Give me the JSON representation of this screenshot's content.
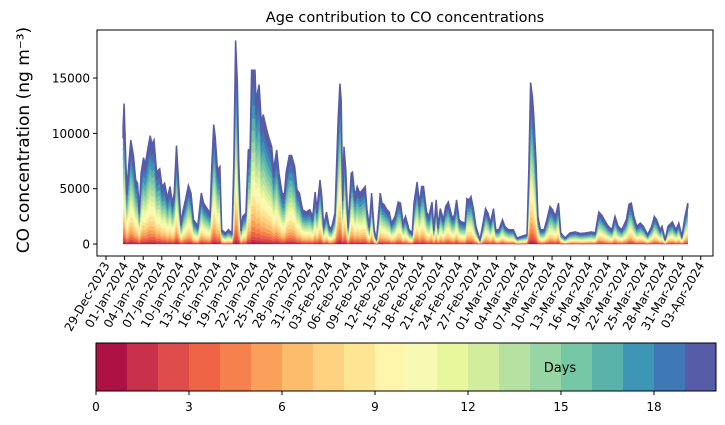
{
  "chart_data": {
    "type": "area",
    "stacked": true,
    "title": "Age contribution to CO concentrations",
    "xlabel": "",
    "ylabel": "CO concentration (ng m⁻³)",
    "xlim": [
      "2023-12-27 13:00",
      "2024-04-04 23:30"
    ],
    "ylim": [
      -1080,
      19340
    ],
    "yticks": [
      0,
      5000,
      10000,
      15000
    ],
    "xtick_labels": [
      "29-Dec-2023",
      "01-Jan-2024",
      "04-Jan-2024",
      "07-Jan-2024",
      "10-Jan-2024",
      "13-Jan-2024",
      "16-Jan-2024",
      "19-Jan-2024",
      "22-Jan-2024",
      "25-Jan-2024",
      "28-Jan-2024",
      "31-Jan-2024",
      "03-Feb-2024",
      "06-Feb-2024",
      "09-Feb-2024",
      "12-Feb-2024",
      "15-Feb-2024",
      "18-Feb-2024",
      "21-Feb-2024",
      "24-Feb-2024",
      "27-Feb-2024",
      "01-Mar-2024",
      "04-Mar-2024",
      "07-Mar-2024",
      "10-Mar-2024",
      "13-Mar-2024",
      "16-Mar-2024",
      "19-Mar-2024",
      "22-Mar-2024",
      "25-Mar-2024",
      "28-Mar-2024",
      "31-Mar-2024",
      "03-Apr-2024"
    ],
    "xtick_dates": [
      "2023-12-29",
      "2024-01-01",
      "2024-01-04",
      "2024-01-07",
      "2024-01-10",
      "2024-01-13",
      "2024-01-16",
      "2024-01-19",
      "2024-01-22",
      "2024-01-25",
      "2024-01-28",
      "2024-01-31",
      "2024-02-03",
      "2024-02-06",
      "2024-02-09",
      "2024-02-12",
      "2024-02-15",
      "2024-02-18",
      "2024-02-21",
      "2024-02-24",
      "2024-02-27",
      "2024-03-01",
      "2024-03-04",
      "2024-03-07",
      "2024-03-10",
      "2024-03-13",
      "2024-03-16",
      "2024-03-19",
      "2024-03-22",
      "2024-03-25",
      "2024-03-28",
      "2024-03-31",
      "2024-04-03"
    ],
    "total": [
      [
        "2023-12-31 18:00",
        10600
      ],
      [
        "2023-12-31 22:00",
        12700
      ],
      [
        "2024-01-01 08:00",
        4900
      ],
      [
        "2024-01-02 00:00",
        9400
      ],
      [
        "2024-01-02 10:00",
        8000
      ],
      [
        "2024-01-02 19:00",
        5800
      ],
      [
        "2024-01-03 02:00",
        5500
      ],
      [
        "2024-01-03 09:00",
        3100
      ],
      [
        "2024-01-03 16:00",
        6400
      ],
      [
        "2024-01-04 01:00",
        7800
      ],
      [
        "2024-01-04 08:00",
        7200
      ],
      [
        "2024-01-04 20:00",
        8900
      ],
      [
        "2024-01-05 03:00",
        9800
      ],
      [
        "2024-01-05 10:00",
        9000
      ],
      [
        "2024-01-05 18:00",
        9400
      ],
      [
        "2024-01-06 04:00",
        6500
      ],
      [
        "2024-01-06 16:00",
        6800
      ],
      [
        "2024-01-07 01:00",
        5200
      ],
      [
        "2024-01-07 11:00",
        5500
      ],
      [
        "2024-01-07 22:00",
        4150
      ],
      [
        "2024-01-08 08:00",
        5200
      ],
      [
        "2024-01-08 17:00",
        3700
      ],
      [
        "2024-01-09 00:00",
        4600
      ],
      [
        "2024-01-09 09:00",
        8900
      ],
      [
        "2024-01-09 16:00",
        6100
      ],
      [
        "2024-01-10 02:00",
        1900
      ],
      [
        "2024-01-10 11:00",
        3100
      ],
      [
        "2024-01-10 20:00",
        4000
      ],
      [
        "2024-01-11 07:00",
        5300
      ],
      [
        "2024-01-11 17:00",
        4600
      ],
      [
        "2024-01-12 03:00",
        2200
      ],
      [
        "2024-01-12 12:00",
        1900
      ],
      [
        "2024-01-12 19:00",
        1600
      ],
      [
        "2024-01-13 09:00",
        4600
      ],
      [
        "2024-01-13 18:00",
        3700
      ],
      [
        "2024-01-14 19:00",
        2800
      ],
      [
        "2024-01-15 01:00",
        6700
      ],
      [
        "2024-01-15 09:00",
        10800
      ],
      [
        "2024-01-15 15:00",
        9700
      ],
      [
        "2024-01-16 00:00",
        6700
      ],
      [
        "2024-01-16 09:00",
        7000
      ],
      [
        "2024-01-16 16:00",
        1300
      ],
      [
        "2024-01-17 06:00",
        1000
      ],
      [
        "2024-01-17 18:00",
        1300
      ],
      [
        "2024-01-18 08:00",
        1000
      ],
      [
        "2024-01-18 15:00",
        7300
      ],
      [
        "2024-01-18 22:00",
        18400
      ],
      [
        "2024-01-19 05:00",
        14500
      ],
      [
        "2024-01-19 10:00",
        7600
      ],
      [
        "2024-01-19 19:00",
        1300
      ],
      [
        "2024-01-20 02:00",
        2500
      ],
      [
        "2024-01-20 14:00",
        2800
      ],
      [
        "2024-01-20 23:00",
        8500
      ],
      [
        "2024-01-21 06:00",
        8600
      ],
      [
        "2024-01-21 12:00",
        15700
      ],
      [
        "2024-01-22 01:00",
        15700
      ],
      [
        "2024-01-22 05:00",
        13000
      ],
      [
        "2024-01-22 17:00",
        14400
      ],
      [
        "2024-01-23 02:00",
        10900
      ],
      [
        "2024-01-23 09:00",
        11700
      ],
      [
        "2024-01-23 23:00",
        10300
      ],
      [
        "2024-01-24 06:00",
        9700
      ],
      [
        "2024-01-24 18:00",
        8800
      ],
      [
        "2024-01-25 01:00",
        6700
      ],
      [
        "2024-01-25 13:00",
        8500
      ],
      [
        "2024-01-25 22:00",
        6400
      ],
      [
        "2024-01-26 10:00",
        4600
      ],
      [
        "2024-01-26 19:00",
        4500
      ],
      [
        "2024-01-27 02:00",
        6500
      ],
      [
        "2024-01-27 14:00",
        8000
      ],
      [
        "2024-01-27 23:00",
        8000
      ],
      [
        "2024-01-28 11:00",
        7000
      ],
      [
        "2024-01-28 20:00",
        4900
      ],
      [
        "2024-01-29 05:00",
        4600
      ],
      [
        "2024-01-29 17:00",
        3100
      ],
      [
        "2024-01-30 07:00",
        2900
      ],
      [
        "2024-01-30 21:00",
        3100
      ],
      [
        "2024-01-31 09:00",
        2500
      ],
      [
        "2024-01-31 18:00",
        4700
      ],
      [
        "2024-02-01 01:00",
        3100
      ],
      [
        "2024-02-01 13:00",
        5800
      ],
      [
        "2024-02-01 20:00",
        4300
      ],
      [
        "2024-02-02 03:00",
        1600
      ],
      [
        "2024-02-02 14:00",
        2900
      ],
      [
        "2024-02-03 00:00",
        1600
      ],
      [
        "2024-02-03 09:00",
        1400
      ],
      [
        "2024-02-03 23:00",
        2800
      ],
      [
        "2024-02-04 11:00",
        11200
      ],
      [
        "2024-02-04 18:00",
        14500
      ],
      [
        "2024-02-04 23:00",
        13000
      ],
      [
        "2024-02-05 05:00",
        4300
      ],
      [
        "2024-02-05 10:00",
        8800
      ],
      [
        "2024-02-05 17:00",
        6700
      ],
      [
        "2024-02-06 02:00",
        1600
      ],
      [
        "2024-02-06 14:00",
        6400
      ],
      [
        "2024-02-06 19:00",
        6500
      ],
      [
        "2024-02-07 04:00",
        4300
      ],
      [
        "2024-02-07 13:00",
        5200
      ],
      [
        "2024-02-07 23:00",
        4600
      ],
      [
        "2024-02-08 20:00",
        5200
      ],
      [
        "2024-02-09 03:00",
        3100
      ],
      [
        "2024-02-09 12:00",
        1600
      ],
      [
        "2024-02-09 21:00",
        4600
      ],
      [
        "2024-02-10 07:00",
        1300
      ],
      [
        "2024-02-10 16:00",
        400
      ],
      [
        "2024-02-11 06:00",
        4600
      ],
      [
        "2024-02-11 13:00",
        3700
      ],
      [
        "2024-02-11 20:00",
        3600
      ],
      [
        "2024-02-12 08:00",
        3100
      ],
      [
        "2024-02-12 17:00",
        2900
      ],
      [
        "2024-02-13 02:00",
        1900
      ],
      [
        "2024-02-13 16:00",
        2500
      ],
      [
        "2024-02-14 04:00",
        3800
      ],
      [
        "2024-02-14 13:00",
        3700
      ],
      [
        "2024-02-14 23:00",
        1900
      ],
      [
        "2024-02-15 08:00",
        2500
      ],
      [
        "2024-02-15 22:00",
        1300
      ],
      [
        "2024-02-16 10:00",
        1000
      ],
      [
        "2024-02-16 17:00",
        3700
      ],
      [
        "2024-02-17 05:00",
        5600
      ],
      [
        "2024-02-17 14:00",
        3700
      ],
      [
        "2024-02-17 23:00",
        5200
      ],
      [
        "2024-02-18 06:00",
        5200
      ],
      [
        "2024-02-18 18:00",
        2900
      ],
      [
        "2024-02-19 03:00",
        2500
      ],
      [
        "2024-02-19 15:00",
        3800
      ],
      [
        "2024-02-19 22:00",
        1300
      ],
      [
        "2024-02-20 07:00",
        4000
      ],
      [
        "2024-02-20 14:00",
        1600
      ],
      [
        "2024-02-20 23:00",
        3200
      ],
      [
        "2024-02-21 11:00",
        2200
      ],
      [
        "2024-02-21 20:00",
        3400
      ],
      [
        "2024-02-22 06:00",
        3800
      ],
      [
        "2024-02-22 20:00",
        2500
      ],
      [
        "2024-02-23 05:00",
        2500
      ],
      [
        "2024-02-23 14:00",
        4000
      ],
      [
        "2024-02-24 00:00",
        2200
      ],
      [
        "2024-02-24 09:00",
        2000
      ],
      [
        "2024-02-24 23:00",
        1900
      ],
      [
        "2024-02-25 06:00",
        4100
      ],
      [
        "2024-02-25 15:00",
        4000
      ],
      [
        "2024-02-25 22:00",
        4300
      ],
      [
        "2024-02-26 08:00",
        3100
      ],
      [
        "2024-02-26 17:00",
        1600
      ],
      [
        "2024-02-27 09:00",
        400
      ],
      [
        "2024-02-27 21:00",
        1900
      ],
      [
        "2024-02-28 06:00",
        3200
      ],
      [
        "2024-02-28 16:00",
        2800
      ],
      [
        "2024-02-29 01:00",
        1900
      ],
      [
        "2024-02-29 13:00",
        3200
      ],
      [
        "2024-02-29 22:00",
        1300
      ],
      [
        "2024-03-01 10:00",
        1300
      ],
      [
        "2024-03-02 00:00",
        2200
      ],
      [
        "2024-03-02 09:00",
        1600
      ],
      [
        "2024-03-02 23:00",
        1300
      ],
      [
        "2024-03-03 18:00",
        1300
      ],
      [
        "2024-03-04 08:00",
        550
      ],
      [
        "2024-03-05 02:00",
        700
      ],
      [
        "2024-03-05 23:00",
        850
      ],
      [
        "2024-03-06 06:00",
        6700
      ],
      [
        "2024-03-06 13:00",
        14600
      ],
      [
        "2024-03-06 20:00",
        13300
      ],
      [
        "2024-03-07 01:00",
        11700
      ],
      [
        "2024-03-07 10:00",
        7300
      ],
      [
        "2024-03-07 17:00",
        2500
      ],
      [
        "2024-03-08 03:00",
        1300
      ],
      [
        "2024-03-08 17:00",
        1300
      ],
      [
        "2024-03-09 04:00",
        2200
      ],
      [
        "2024-03-09 16:00",
        3400
      ],
      [
        "2024-03-10 02:00",
        3100
      ],
      [
        "2024-03-10 13:00",
        2500
      ],
      [
        "2024-03-11 01:00",
        3700
      ],
      [
        "2024-03-11 10:00",
        1000
      ],
      [
        "2024-03-12 02:00",
        550
      ],
      [
        "2024-03-12 21:00",
        1000
      ],
      [
        "2024-03-13 18:00",
        1100
      ],
      [
        "2024-03-14 13:00",
        950
      ],
      [
        "2024-03-15 07:00",
        1000
      ],
      [
        "2024-03-16 09:00",
        1100
      ],
      [
        "2024-03-16 23:00",
        1000
      ],
      [
        "2024-03-17 13:00",
        2900
      ],
      [
        "2024-03-18 01:00",
        2600
      ],
      [
        "2024-03-18 15:00",
        2000
      ],
      [
        "2024-03-19 02:00",
        1600
      ],
      [
        "2024-03-19 16:00",
        1300
      ],
      [
        "2024-03-20 04:00",
        2500
      ],
      [
        "2024-03-20 16:00",
        1600
      ],
      [
        "2024-03-21 06:00",
        1300
      ],
      [
        "2024-03-22 00:00",
        2200
      ],
      [
        "2024-03-22 10:00",
        3600
      ],
      [
        "2024-03-22 19:00",
        3700
      ],
      [
        "2024-03-23 04:00",
        2600
      ],
      [
        "2024-03-23 16:00",
        1600
      ],
      [
        "2024-03-24 06:00",
        1900
      ],
      [
        "2024-03-24 18:00",
        1600
      ],
      [
        "2024-03-25 10:00",
        850
      ],
      [
        "2024-03-26 02:00",
        1600
      ],
      [
        "2024-03-26 12:00",
        2500
      ],
      [
        "2024-03-26 21:00",
        2200
      ],
      [
        "2024-03-27 11:00",
        1300
      ],
      [
        "2024-03-27 18:00",
        1600
      ],
      [
        "2024-03-28 06:00",
        400
      ],
      [
        "2024-03-28 17:00",
        1600
      ],
      [
        "2024-03-29 10:00",
        2000
      ],
      [
        "2024-03-30 00:00",
        1300
      ],
      [
        "2024-03-30 11:00",
        1900
      ],
      [
        "2024-03-30 23:00",
        700
      ],
      [
        "2024-03-31 11:00",
        2500
      ],
      [
        "2024-03-31 22:00",
        3700
      ]
    ],
    "age_bins_days": [
      0,
      1,
      2,
      3,
      4,
      5,
      6,
      7,
      8,
      9,
      10,
      11,
      12,
      13,
      14,
      15,
      16,
      17,
      18,
      19
    ],
    "layer_share": [
      0.01,
      0.015,
      0.02,
      0.025,
      0.03,
      0.035,
      0.04,
      0.045,
      0.05,
      0.05,
      0.05,
      0.05,
      0.05,
      0.055,
      0.06,
      0.065,
      0.07,
      0.08,
      0.1,
      0.1
    ],
    "layer_colors": [
      "#ae1245",
      "#c9314a",
      "#de4c4b",
      "#ef6445",
      "#f7814c",
      "#fba05b",
      "#fdbb6c",
      "#fed27f",
      "#fee593",
      "#fff5ab",
      "#f7fab3",
      "#e8f69c",
      "#d2ed9b",
      "#b6e1a0",
      "#98d5a4",
      "#76c7a5",
      "#59b2aa",
      "#3e96b7",
      "#3f79b5",
      "#575ca8"
    ],
    "grid": false,
    "colorbar": {
      "label": "Days",
      "range": [
        0,
        20
      ],
      "ticks": [
        0,
        3,
        6,
        9,
        12,
        15,
        18
      ],
      "orientation": "horizontal",
      "placement": "bottom"
    }
  }
}
